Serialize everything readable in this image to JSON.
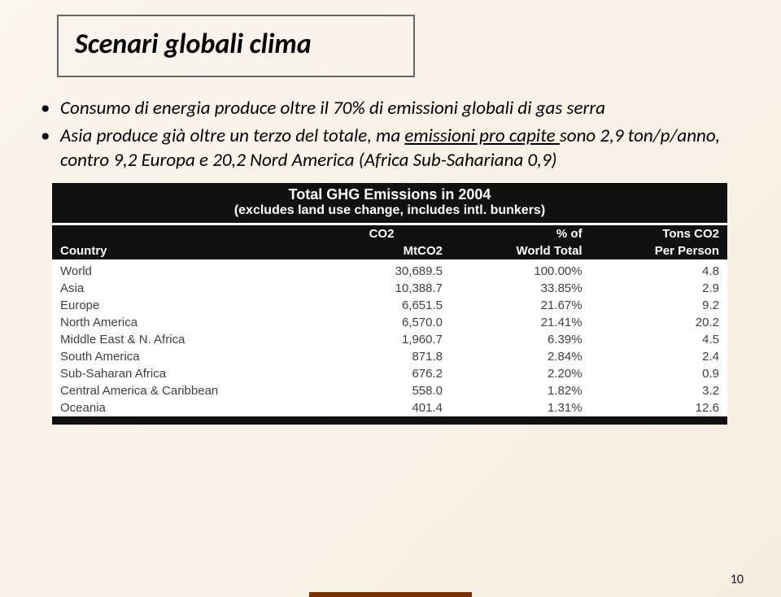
{
  "title": "Scenari globali clima",
  "bullets": [
    {
      "pre": "Consumo di energia produce oltre il 70% di emissioni globali di gas serra"
    },
    {
      "pre": "Asia produce già oltre un terzo del totale, ma ",
      "u": "emissioni pro capite ",
      "post": "sono 2,9 ton/p/anno, contro 9,2 Europa e 20,2 Nord America (Africa Sub-Sahariana 0,9)"
    }
  ],
  "table": {
    "title1": "Total GHG Emissions in 2004",
    "title2": "(excludes land use change, includes intl. bunkers)",
    "co2_label": "CO2",
    "headers": {
      "country": "Country",
      "mt": "MtCO2",
      "pct_top": "% of",
      "pct_bot": "World Total",
      "pp_top": "Tons CO2",
      "pp_bot": "Per Person"
    },
    "rows": [
      {
        "c": "World",
        "mt": "30,689.5",
        "pct": "100.00%",
        "pp": "4.8"
      },
      {
        "c": "Asia",
        "mt": "10,388.7",
        "pct": "33.85%",
        "pp": "2.9"
      },
      {
        "c": "Europe",
        "mt": "6,651.5",
        "pct": "21.67%",
        "pp": "9.2"
      },
      {
        "c": "North America",
        "mt": "6,570.0",
        "pct": "21.41%",
        "pp": "20.2"
      },
      {
        "c": "Middle East & N. Africa",
        "mt": "1,960.7",
        "pct": "6.39%",
        "pp": "4.5"
      },
      {
        "c": "South America",
        "mt": "871.8",
        "pct": "2.84%",
        "pp": "2.4"
      },
      {
        "c": "Sub-Saharan Africa",
        "mt": "676.2",
        "pct": "2.20%",
        "pp": "0.9"
      },
      {
        "c": "Central America & Caribbean",
        "mt": "558.0",
        "pct": "1.82%",
        "pp": "3.2"
      },
      {
        "c": "Oceania",
        "mt": "401.4",
        "pct": "1.31%",
        "pp": "12.6"
      }
    ]
  },
  "page_number": "10"
}
